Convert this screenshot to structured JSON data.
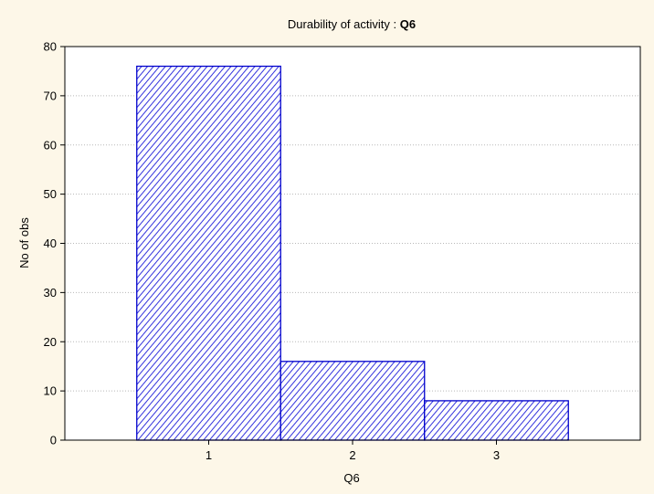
{
  "chart_data": {
    "type": "bar",
    "title": "Durability of activity : ",
    "title_var": "Q6",
    "xlabel": "Q6",
    "ylabel": "No of obs",
    "categories": [
      "1",
      "2",
      "3"
    ],
    "values": [
      76,
      16,
      8
    ],
    "ylim": [
      0,
      80
    ],
    "yticks": [
      0,
      10,
      20,
      30,
      40,
      50,
      60,
      70,
      80
    ],
    "grid": true,
    "legend": "none",
    "colors": {
      "bar_stroke": "#0000cc",
      "bar_hatch": "#3333dd",
      "background": "#fdf7e8",
      "plot_background": "#ffffff"
    }
  }
}
